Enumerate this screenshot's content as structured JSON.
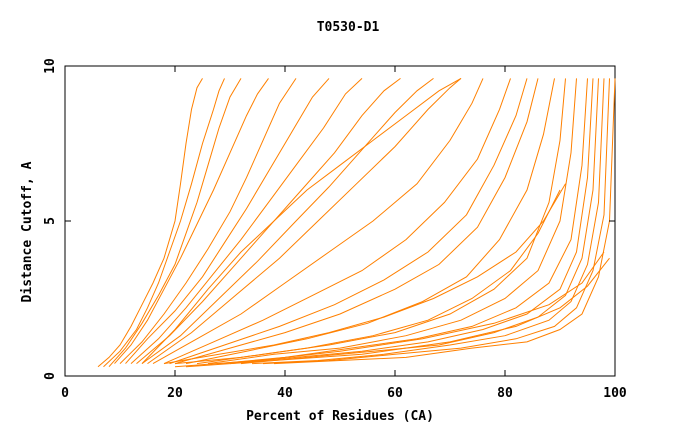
{
  "chart_data": {
    "type": "line",
    "title": "T0530-D1",
    "xlabel": "Percent of Residues (CA)",
    "ylabel": "Distance Cutoff, A",
    "xlim": [
      0,
      100
    ],
    "ylim": [
      0,
      10
    ],
    "x_ticks": [
      "0",
      "20",
      "40",
      "60",
      "80",
      "100"
    ],
    "y_ticks": [
      "0",
      "5",
      "10"
    ],
    "grid": false,
    "legend": "none",
    "line_color": "#ff8000",
    "series": [
      {
        "x": [
          6,
          8,
          10,
          12,
          14,
          16,
          18,
          20,
          21,
          22,
          23,
          24,
          25
        ],
        "y": [
          0.3,
          0.6,
          1.0,
          1.6,
          2.3,
          3.0,
          3.8,
          5.0,
          6.2,
          7.5,
          8.6,
          9.3,
          9.6
        ]
      },
      {
        "x": [
          7,
          10,
          13,
          15,
          17,
          19,
          21,
          23,
          25,
          27,
          28,
          29
        ],
        "y": [
          0.3,
          0.8,
          1.5,
          2.2,
          3.0,
          4.0,
          5.0,
          6.2,
          7.5,
          8.6,
          9.2,
          9.6
        ]
      },
      {
        "x": [
          8,
          11,
          14,
          17,
          20,
          22,
          24,
          26,
          28,
          30,
          32
        ],
        "y": [
          0.3,
          0.9,
          1.7,
          2.6,
          3.6,
          4.6,
          5.6,
          6.8,
          8.0,
          9.0,
          9.6
        ]
      },
      {
        "x": [
          9,
          12,
          15,
          18,
          21,
          24,
          27,
          30,
          33,
          35,
          37
        ],
        "y": [
          0.4,
          1.0,
          1.8,
          2.8,
          3.8,
          4.9,
          6.0,
          7.2,
          8.4,
          9.1,
          9.6
        ]
      },
      {
        "x": [
          10,
          14,
          18,
          22,
          26,
          30,
          33,
          36,
          39,
          42
        ],
        "y": [
          0.4,
          1.1,
          2.0,
          3.0,
          4.1,
          5.3,
          6.4,
          7.6,
          8.8,
          9.6
        ]
      },
      {
        "x": [
          11,
          15,
          20,
          25,
          29,
          33,
          37,
          41,
          45,
          48
        ],
        "y": [
          0.4,
          1.2,
          2.1,
          3.2,
          4.3,
          5.4,
          6.6,
          7.8,
          9.0,
          9.6
        ]
      },
      {
        "x": [
          12,
          17,
          22,
          27,
          32,
          37,
          42,
          47,
          51,
          54
        ],
        "y": [
          0.4,
          1.2,
          2.2,
          3.3,
          4.4,
          5.6,
          6.8,
          8.0,
          9.1,
          9.6
        ]
      },
      {
        "x": [
          13,
          19,
          25,
          31,
          37,
          43,
          49,
          54,
          58,
          61
        ],
        "y": [
          0.4,
          1.3,
          2.4,
          3.6,
          4.8,
          6.0,
          7.2,
          8.4,
          9.2,
          9.6
        ]
      },
      {
        "x": [
          14,
          21,
          28,
          35,
          42,
          48,
          54,
          60,
          64,
          67
        ],
        "y": [
          0.4,
          1.3,
          2.5,
          3.7,
          5.0,
          6.1,
          7.3,
          8.5,
          9.2,
          9.6
        ]
      },
      {
        "x": [
          15,
          23,
          31,
          39,
          46,
          53,
          60,
          66,
          70,
          72
        ],
        "y": [
          0.4,
          1.4,
          2.6,
          3.8,
          5.0,
          6.2,
          7.4,
          8.6,
          9.3,
          9.6
        ]
      },
      {
        "x": [
          14,
          20,
          26,
          32,
          38,
          44,
          50,
          56,
          62,
          68,
          72
        ],
        "y": [
          0.4,
          1.5,
          2.8,
          4.0,
          5.0,
          6.0,
          6.8,
          7.6,
          8.4,
          9.2,
          9.6
        ]
      },
      {
        "x": [
          16,
          24,
          32,
          40,
          48,
          56,
          64,
          70,
          74,
          76
        ],
        "y": [
          0.4,
          1.2,
          2.0,
          3.0,
          4.0,
          5.0,
          6.2,
          7.6,
          8.8,
          9.6
        ]
      },
      {
        "x": [
          18,
          27,
          36,
          45,
          54,
          62,
          69,
          75,
          79,
          81
        ],
        "y": [
          0.4,
          1.1,
          1.8,
          2.6,
          3.4,
          4.4,
          5.6,
          7.0,
          8.6,
          9.6
        ]
      },
      {
        "x": [
          19,
          29,
          39,
          49,
          58,
          66,
          73,
          78,
          82,
          84
        ],
        "y": [
          0.4,
          1.0,
          1.6,
          2.3,
          3.1,
          4.0,
          5.2,
          6.8,
          8.4,
          9.6
        ]
      },
      {
        "x": [
          20,
          30,
          40,
          50,
          60,
          68,
          75,
          80,
          84,
          86
        ],
        "y": [
          0.4,
          0.9,
          1.4,
          2.0,
          2.8,
          3.6,
          4.8,
          6.4,
          8.2,
          9.6
        ]
      },
      {
        "x": [
          22,
          33,
          44,
          55,
          65,
          73,
          79,
          84,
          87,
          89
        ],
        "y": [
          0.4,
          0.8,
          1.2,
          1.7,
          2.4,
          3.2,
          4.4,
          6.0,
          7.8,
          9.6
        ]
      },
      {
        "x": [
          24,
          36,
          48,
          60,
          70,
          78,
          84,
          88,
          90,
          91
        ],
        "y": [
          0.4,
          0.7,
          1.0,
          1.4,
          2.0,
          2.8,
          3.8,
          5.6,
          7.6,
          9.6
        ]
      },
      {
        "x": [
          26,
          38,
          50,
          62,
          72,
          80,
          86,
          90,
          92,
          93
        ],
        "y": [
          0.4,
          0.7,
          0.9,
          1.3,
          1.8,
          2.5,
          3.4,
          5.0,
          7.2,
          9.6
        ]
      },
      {
        "x": [
          28,
          40,
          52,
          64,
          74,
          82,
          88,
          92,
          94,
          95
        ],
        "y": [
          0.4,
          0.6,
          0.9,
          1.2,
          1.6,
          2.2,
          3.0,
          4.4,
          6.8,
          9.6
        ]
      },
      {
        "x": [
          30,
          42,
          54,
          66,
          76,
          84,
          90,
          93,
          95,
          96
        ],
        "y": [
          0.4,
          0.6,
          0.8,
          1.1,
          1.5,
          2.0,
          2.8,
          4.0,
          6.4,
          9.6
        ]
      },
      {
        "x": [
          32,
          44,
          56,
          68,
          78,
          86,
          91,
          94,
          96,
          97
        ],
        "y": [
          0.4,
          0.6,
          0.8,
          1.0,
          1.4,
          1.9,
          2.6,
          3.8,
          6.0,
          9.6
        ]
      },
      {
        "x": [
          34,
          46,
          58,
          70,
          80,
          88,
          92,
          95,
          97,
          98
        ],
        "y": [
          0.4,
          0.5,
          0.7,
          1.0,
          1.3,
          1.8,
          2.4,
          3.6,
          5.6,
          9.6
        ]
      },
      {
        "x": [
          36,
          48,
          60,
          72,
          82,
          89,
          93,
          96,
          98,
          99
        ],
        "y": [
          0.4,
          0.5,
          0.7,
          0.9,
          1.2,
          1.6,
          2.2,
          3.4,
          5.2,
          9.6
        ]
      },
      {
        "x": [
          38,
          50,
          62,
          74,
          84,
          90,
          94,
          97,
          99,
          100
        ],
        "y": [
          0.4,
          0.5,
          0.6,
          0.9,
          1.1,
          1.5,
          2.0,
          3.2,
          5.0,
          9.6
        ]
      },
      {
        "x": [
          20,
          32,
          44,
          56,
          66,
          74,
          81,
          86,
          90
        ],
        "y": [
          0.4,
          0.6,
          0.9,
          1.3,
          1.8,
          2.5,
          3.4,
          4.6,
          6.0
        ]
      },
      {
        "x": [
          18,
          28,
          38,
          48,
          58,
          67,
          75,
          82,
          87,
          91
        ],
        "y": [
          0.4,
          0.7,
          1.0,
          1.4,
          1.9,
          2.5,
          3.2,
          4.0,
          5.0,
          6.2
        ]
      },
      {
        "x": [
          20,
          35,
          50,
          65,
          78,
          88,
          94,
          98
        ],
        "y": [
          0.3,
          0.5,
          0.8,
          1.2,
          1.7,
          2.3,
          3.0,
          4.0
        ]
      },
      {
        "x": [
          22,
          38,
          54,
          70,
          82,
          90,
          95,
          99
        ],
        "y": [
          0.3,
          0.5,
          0.7,
          1.1,
          1.6,
          2.2,
          2.9,
          3.8
        ]
      }
    ]
  }
}
